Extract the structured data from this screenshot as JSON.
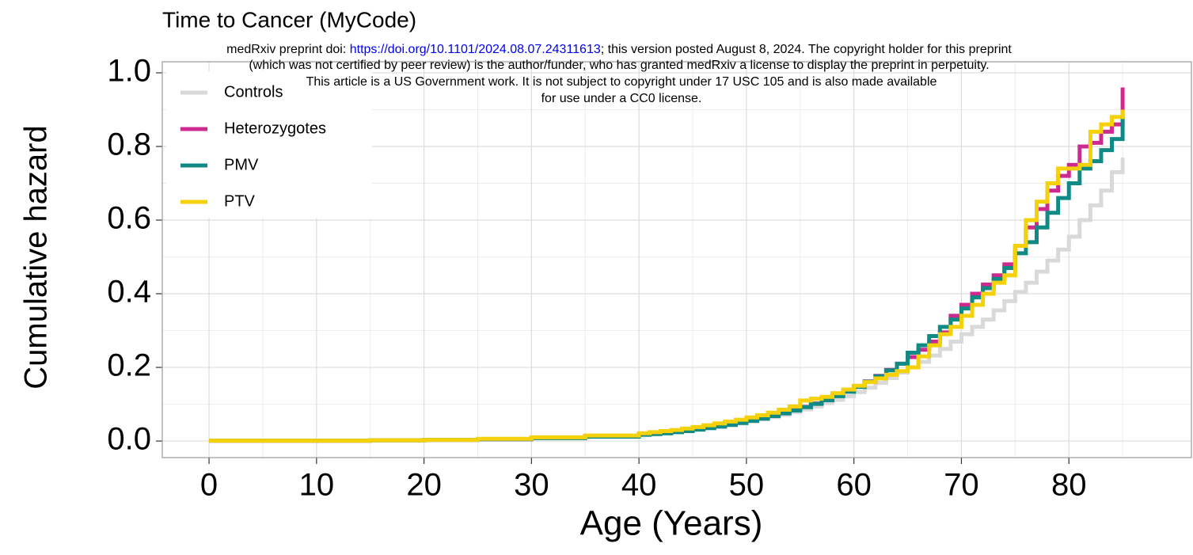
{
  "chart_data": {
    "type": "step",
    "title": "Time to Cancer (MyCode)",
    "xlabel": "Age (Years)",
    "ylabel": "Cumulative hazard",
    "x": [
      0,
      5,
      10,
      15,
      20,
      25,
      30,
      35,
      40,
      41,
      42,
      43,
      44,
      45,
      46,
      47,
      48,
      49,
      50,
      51,
      52,
      53,
      54,
      55,
      56,
      57,
      58,
      59,
      60,
      61,
      62,
      63,
      64,
      65,
      66,
      67,
      68,
      69,
      70,
      71,
      72,
      73,
      74,
      75,
      76,
      77,
      78,
      79,
      80,
      81,
      82,
      83,
      84,
      85
    ],
    "series": [
      {
        "name": "Controls",
        "color": "#d9d9d9",
        "values": [
          0.001,
          0.001,
          0.001,
          0.002,
          0.003,
          0.005,
          0.008,
          0.012,
          0.017,
          0.019,
          0.021,
          0.024,
          0.027,
          0.031,
          0.035,
          0.039,
          0.043,
          0.048,
          0.053,
          0.059,
          0.065,
          0.071,
          0.078,
          0.086,
          0.094,
          0.103,
          0.112,
          0.122,
          0.133,
          0.145,
          0.158,
          0.171,
          0.186,
          0.2,
          0.215,
          0.232,
          0.25,
          0.27,
          0.29,
          0.31,
          0.33,
          0.355,
          0.38,
          0.405,
          0.43,
          0.46,
          0.49,
          0.52,
          0.555,
          0.6,
          0.64,
          0.68,
          0.73,
          0.77
        ]
      },
      {
        "name": "Heterozygotes",
        "color": "#cc2a8f",
        "values": [
          0.001,
          0.001,
          0.001,
          0.002,
          0.003,
          0.005,
          0.009,
          0.013,
          0.018,
          0.02,
          0.022,
          0.025,
          0.028,
          0.032,
          0.036,
          0.04,
          0.045,
          0.05,
          0.056,
          0.062,
          0.069,
          0.076,
          0.084,
          0.093,
          0.102,
          0.112,
          0.123,
          0.135,
          0.148,
          0.162,
          0.177,
          0.193,
          0.21,
          0.228,
          0.248,
          0.27,
          0.295,
          0.34,
          0.37,
          0.4,
          0.425,
          0.45,
          0.48,
          0.53,
          0.58,
          0.63,
          0.68,
          0.72,
          0.75,
          0.8,
          0.81,
          0.84,
          0.86,
          0.96
        ]
      },
      {
        "name": "PMV",
        "color": "#0f8a84",
        "values": [
          0.001,
          0.001,
          0.001,
          0.002,
          0.003,
          0.005,
          0.008,
          0.012,
          0.017,
          0.019,
          0.021,
          0.024,
          0.027,
          0.031,
          0.035,
          0.039,
          0.044,
          0.049,
          0.055,
          0.061,
          0.068,
          0.075,
          0.083,
          0.092,
          0.101,
          0.111,
          0.122,
          0.134,
          0.147,
          0.161,
          0.176,
          0.192,
          0.21,
          0.24,
          0.26,
          0.285,
          0.31,
          0.33,
          0.36,
          0.39,
          0.415,
          0.44,
          0.47,
          0.51,
          0.54,
          0.58,
          0.62,
          0.66,
          0.7,
          0.74,
          0.76,
          0.79,
          0.82,
          0.88
        ]
      },
      {
        "name": "PTV",
        "color": "#f5d10a",
        "values": [
          0.001,
          0.001,
          0.001,
          0.002,
          0.003,
          0.006,
          0.01,
          0.015,
          0.021,
          0.024,
          0.027,
          0.03,
          0.034,
          0.038,
          0.043,
          0.048,
          0.053,
          0.058,
          0.064,
          0.07,
          0.077,
          0.085,
          0.094,
          0.11,
          0.115,
          0.12,
          0.13,
          0.14,
          0.15,
          0.16,
          0.17,
          0.18,
          0.19,
          0.2,
          0.23,
          0.26,
          0.29,
          0.31,
          0.34,
          0.37,
          0.4,
          0.43,
          0.45,
          0.53,
          0.6,
          0.65,
          0.7,
          0.74,
          0.74,
          0.75,
          0.84,
          0.86,
          0.88,
          0.9
        ]
      }
    ],
    "xlim": [
      -4.35,
      91.4
    ],
    "ylim": [
      -0.045,
      1.03
    ],
    "xticks": [
      0,
      10,
      20,
      30,
      40,
      50,
      60,
      70,
      80
    ],
    "yticks": [
      {
        "value": 0,
        "label": "0.0"
      },
      0.2,
      0.4,
      0.6,
      0.8,
      {
        "value": 1,
        "label": "1.0"
      }
    ],
    "x_minor_grid": [
      5,
      15,
      25,
      35,
      45,
      55,
      65,
      75,
      85
    ],
    "y_minor_grid": [
      0.1,
      0.3,
      0.5,
      0.7,
      0.9
    ],
    "grid": true,
    "legend": "top-left"
  },
  "watermark": {
    "line1_prefix": "medRxiv preprint doi: ",
    "link": "https://doi.org/10.1101/2024.08.07.24311613",
    "line1_suffix": "; this version posted August 8, 2024. The copyright holder for this preprint",
    "line2": "(which was not certified by peer review) is the author/funder, who has granted medRxiv a license to display the preprint in perpetuity.",
    "line3": "This article is a US Government work. It is not subject to copyright under 17 USC 105 and is also made available",
    "line4": "for use under a CC0 license."
  }
}
